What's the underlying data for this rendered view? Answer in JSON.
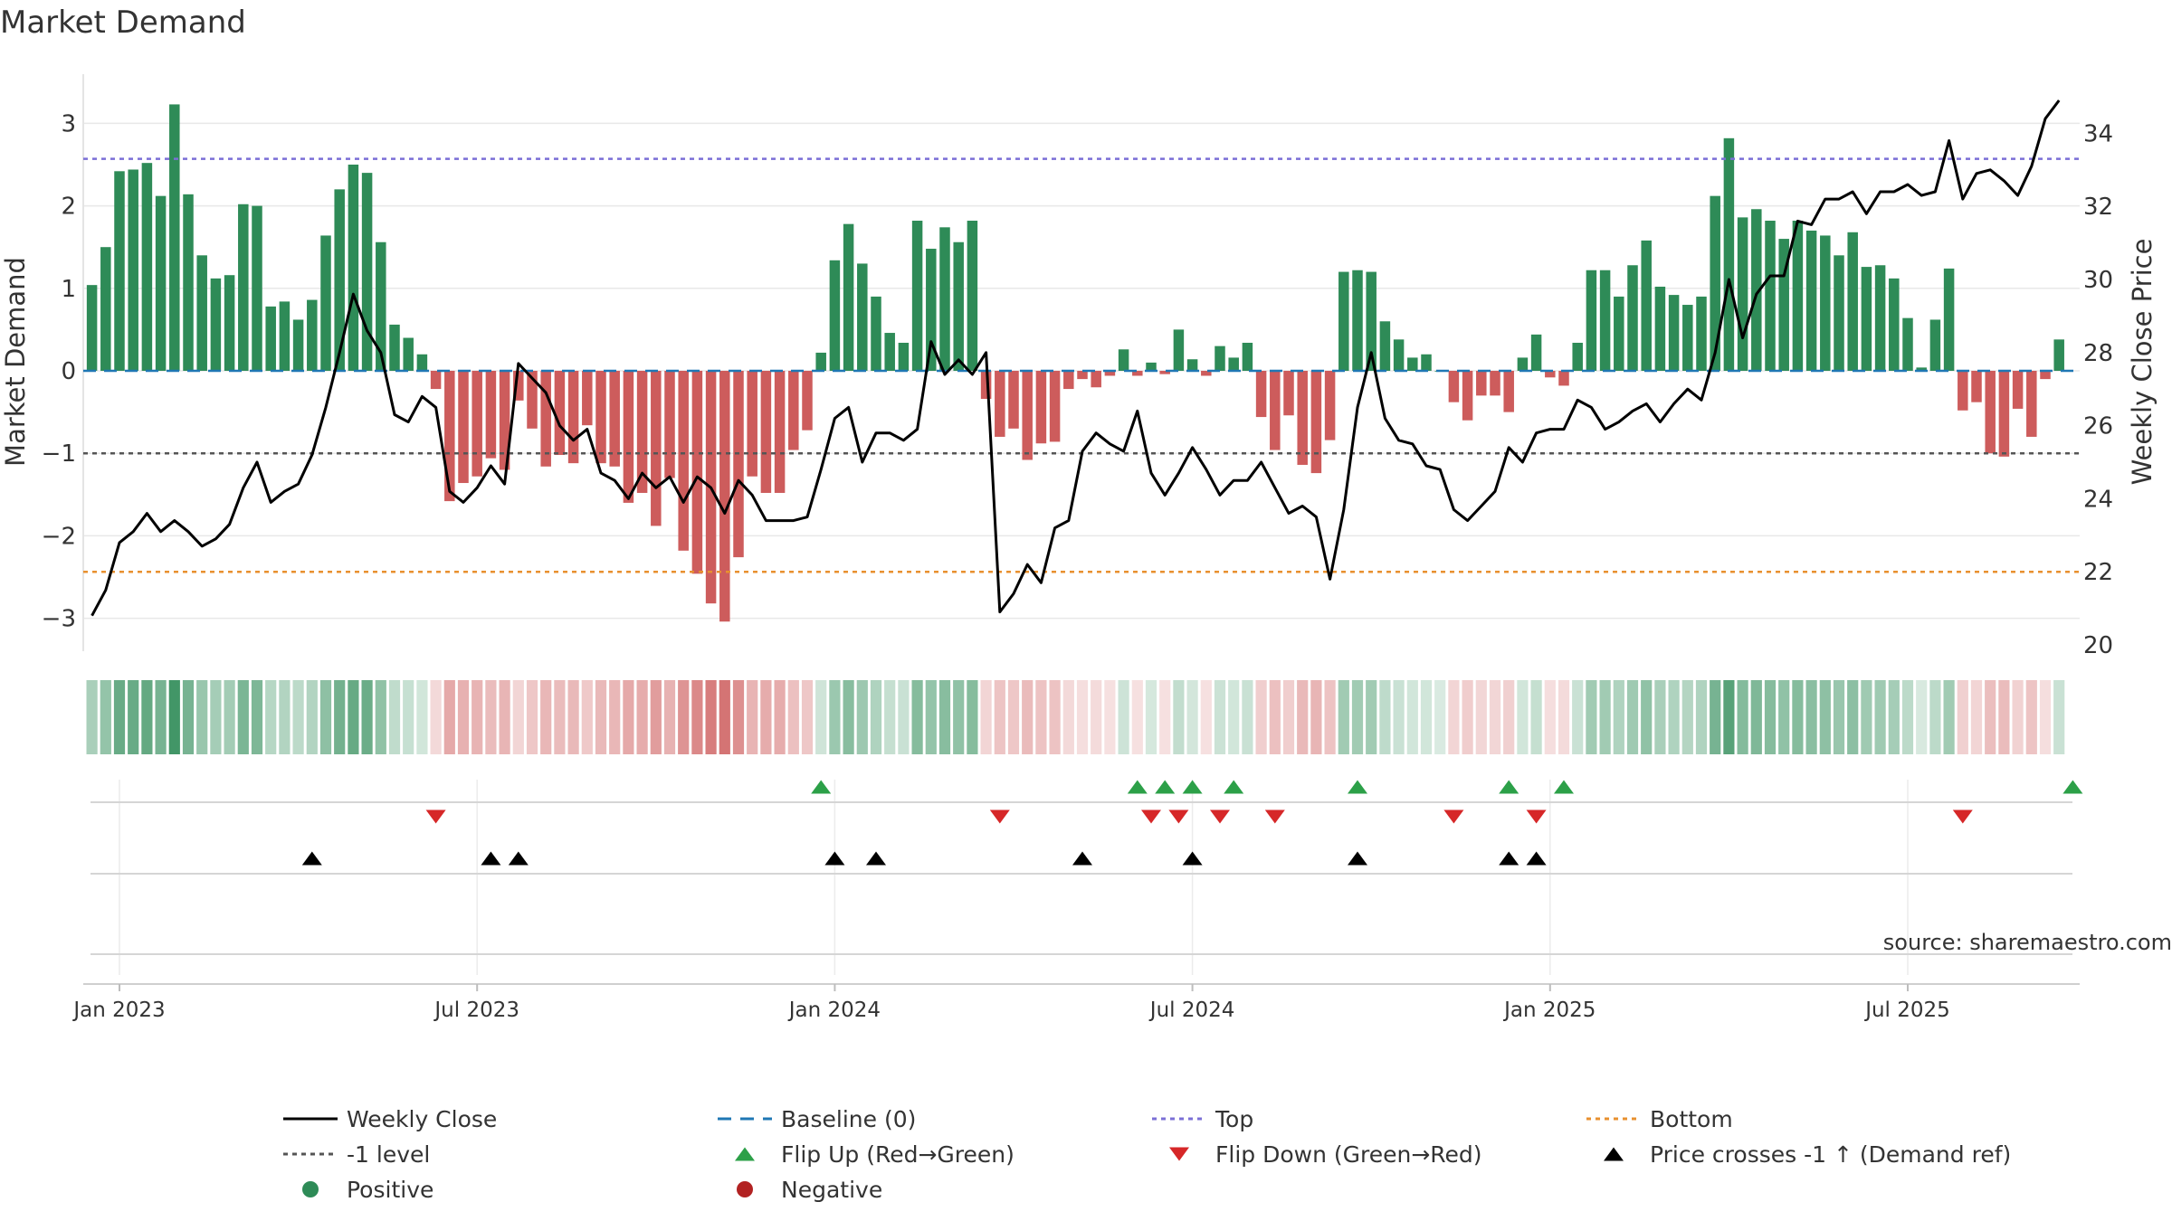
{
  "chart_data": {
    "type": "bar+line",
    "title": "Market Demand",
    "ylabel_left": "Market Demand",
    "ylabel_right": "Weekly Close Price",
    "source": "source: sharemaestro.com",
    "ylim_left": [
      -3.3,
      3.7
    ],
    "ylim_right": [
      19.7,
      35.4
    ],
    "yticks_left": [
      -3,
      -2,
      -1,
      0,
      1,
      2,
      3
    ],
    "yticks_left_labels": [
      "−3",
      "−2",
      "−1",
      "0",
      "1",
      "2",
      "3"
    ],
    "yticks_right": [
      20,
      22,
      24,
      26,
      28,
      30,
      32,
      34
    ],
    "yticks_right_labels": [
      "20",
      "22",
      "24",
      "26",
      "28",
      "30",
      "32",
      "34"
    ],
    "xticks": [
      {
        "label": "Jan 2023",
        "week": 2
      },
      {
        "label": "Jul 2023",
        "week": 28
      },
      {
        "label": "Jan 2024",
        "week": 54
      },
      {
        "label": "Jul 2024",
        "week": 80
      },
      {
        "label": "Jan 2025",
        "week": 106
      },
      {
        "label": "Jul 2025",
        "week": 132
      }
    ],
    "reference_lines": {
      "top": 2.57,
      "bottom_price": 22.0,
      "minus_one": -1,
      "baseline": 0
    },
    "demand": [
      1.04,
      1.5,
      2.42,
      2.44,
      2.52,
      2.12,
      3.23,
      2.14,
      1.4,
      1.12,
      1.16,
      2.02,
      2.0,
      0.78,
      0.84,
      0.62,
      0.86,
      1.64,
      2.2,
      2.5,
      2.4,
      1.56,
      0.56,
      0.4,
      0.2,
      -0.22,
      -1.58,
      -1.36,
      -1.28,
      -1.06,
      -1.2,
      -0.36,
      -0.7,
      -1.16,
      -1.02,
      -1.12,
      -0.66,
      -1.12,
      -1.16,
      -1.6,
      -1.48,
      -1.88,
      -1.3,
      -2.18,
      -2.46,
      -2.82,
      -3.04,
      -2.26,
      -1.28,
      -1.48,
      -1.48,
      -0.96,
      -0.72,
      0.22,
      1.34,
      1.78,
      1.3,
      0.9,
      0.46,
      0.34,
      1.82,
      1.48,
      1.74,
      1.56,
      1.82,
      -0.34,
      -0.8,
      -0.7,
      -1.08,
      -0.88,
      -0.86,
      -0.22,
      -0.1,
      -0.2,
      -0.06,
      0.26,
      -0.06,
      0.1,
      -0.04,
      0.5,
      0.14,
      -0.06,
      0.3,
      0.16,
      0.34,
      -0.56,
      -0.96,
      -0.54,
      -1.14,
      -1.24,
      -0.84,
      1.2,
      1.22,
      1.2,
      0.6,
      0.38,
      0.16,
      0.2,
      0.0,
      -0.38,
      -0.6,
      -0.3,
      -0.3,
      -0.5,
      0.16,
      0.44,
      -0.08,
      -0.18,
      0.34,
      1.22,
      1.22,
      0.9,
      1.28,
      1.58,
      1.02,
      0.92,
      0.8,
      0.9,
      2.12,
      2.82,
      1.86,
      1.96,
      1.82,
      1.6,
      1.82,
      1.7,
      1.64,
      1.4,
      1.68,
      1.26,
      1.28,
      1.12,
      0.64,
      0.04,
      0.62,
      1.24,
      -0.48,
      -0.38,
      -1.0,
      -1.04,
      -0.46,
      -0.8,
      -0.1,
      0.38
    ],
    "close": [
      20.8,
      21.5,
      22.8,
      23.1,
      23.6,
      23.1,
      23.4,
      23.1,
      22.7,
      22.9,
      23.3,
      24.3,
      25.0,
      23.9,
      24.2,
      24.4,
      25.2,
      26.5,
      28.0,
      29.6,
      28.6,
      28.0,
      26.3,
      26.1,
      26.8,
      26.5,
      24.2,
      23.9,
      24.3,
      24.9,
      24.4,
      27.7,
      27.3,
      26.9,
      26.0,
      25.6,
      25.9,
      24.7,
      24.5,
      24.0,
      24.7,
      24.3,
      24.6,
      23.9,
      24.6,
      24.3,
      23.6,
      24.5,
      24.1,
      23.4,
      23.4,
      23.4,
      23.5,
      24.8,
      26.2,
      26.5,
      25.0,
      25.8,
      25.8,
      25.6,
      25.9,
      28.3,
      27.4,
      27.8,
      27.4,
      28.0,
      20.9,
      21.4,
      22.2,
      21.7,
      23.2,
      23.4,
      25.3,
      25.8,
      25.5,
      25.3,
      26.4,
      24.7,
      24.1,
      24.7,
      25.4,
      24.8,
      24.1,
      24.5,
      24.5,
      25.0,
      24.3,
      23.6,
      23.8,
      23.5,
      21.8,
      23.7,
      26.5,
      28.0,
      26.2,
      25.6,
      25.5,
      24.9,
      24.8,
      23.7,
      23.4,
      23.8,
      24.2,
      25.4,
      25.0,
      25.8,
      25.9,
      25.9,
      26.7,
      26.5,
      25.9,
      26.1,
      26.4,
      26.6,
      26.1,
      26.6,
      27.0,
      26.7,
      28.0,
      30.0,
      28.4,
      29.6,
      30.1,
      30.1,
      31.6,
      31.5,
      32.2,
      32.2,
      32.4,
      31.8,
      32.4,
      32.4,
      32.6,
      32.3,
      32.4,
      33.8,
      32.2,
      32.9,
      33.0,
      32.7,
      32.3,
      33.1,
      34.4,
      34.9
    ],
    "flip_up_weeks": [
      53,
      76,
      78,
      80,
      83,
      92,
      103,
      107,
      144
    ],
    "flip_down_weeks": [
      25,
      66,
      77,
      79,
      82,
      86,
      99,
      105,
      136
    ],
    "price_cross_weeks": [
      16,
      29,
      31,
      54,
      57,
      72,
      80,
      92,
      103,
      105
    ],
    "legend": [
      {
        "label": "Weekly Close",
        "symbol": "line",
        "color": "#000000"
      },
      {
        "label": "Baseline (0)",
        "symbol": "dash",
        "color": "#1f77b4"
      },
      {
        "label": "Top",
        "symbol": "dot",
        "color": "#7b6fd6"
      },
      {
        "label": "Bottom",
        "symbol": "dot",
        "color": "#e8902f"
      },
      {
        "label": "-1 level",
        "symbol": "dot",
        "color": "#555555"
      },
      {
        "label": "Flip Up (Red→Green)",
        "symbol": "tri-up",
        "color": "#2ca048"
      },
      {
        "label": "Flip Down (Green→Red)",
        "symbol": "tri-down",
        "color": "#d62728"
      },
      {
        "label": "Price crosses -1 ↑ (Demand ref)",
        "symbol": "tri-up",
        "color": "#000000"
      },
      {
        "label": "Positive",
        "symbol": "circle",
        "color": "#2e8b57"
      },
      {
        "label": "Negative",
        "symbol": "circle",
        "color": "#b22222"
      }
    ],
    "colors": {
      "positive": "#2e8b57",
      "negative": "#cd5c5c",
      "line": "#000000",
      "baseline": "#1f77b4",
      "top": "#7b6fd6",
      "bottom": "#e8902f",
      "minus_one": "#555555",
      "flip_up": "#2ca048",
      "flip_down": "#d62728",
      "cross": "#000000",
      "grid": "#e8e8e8"
    }
  }
}
